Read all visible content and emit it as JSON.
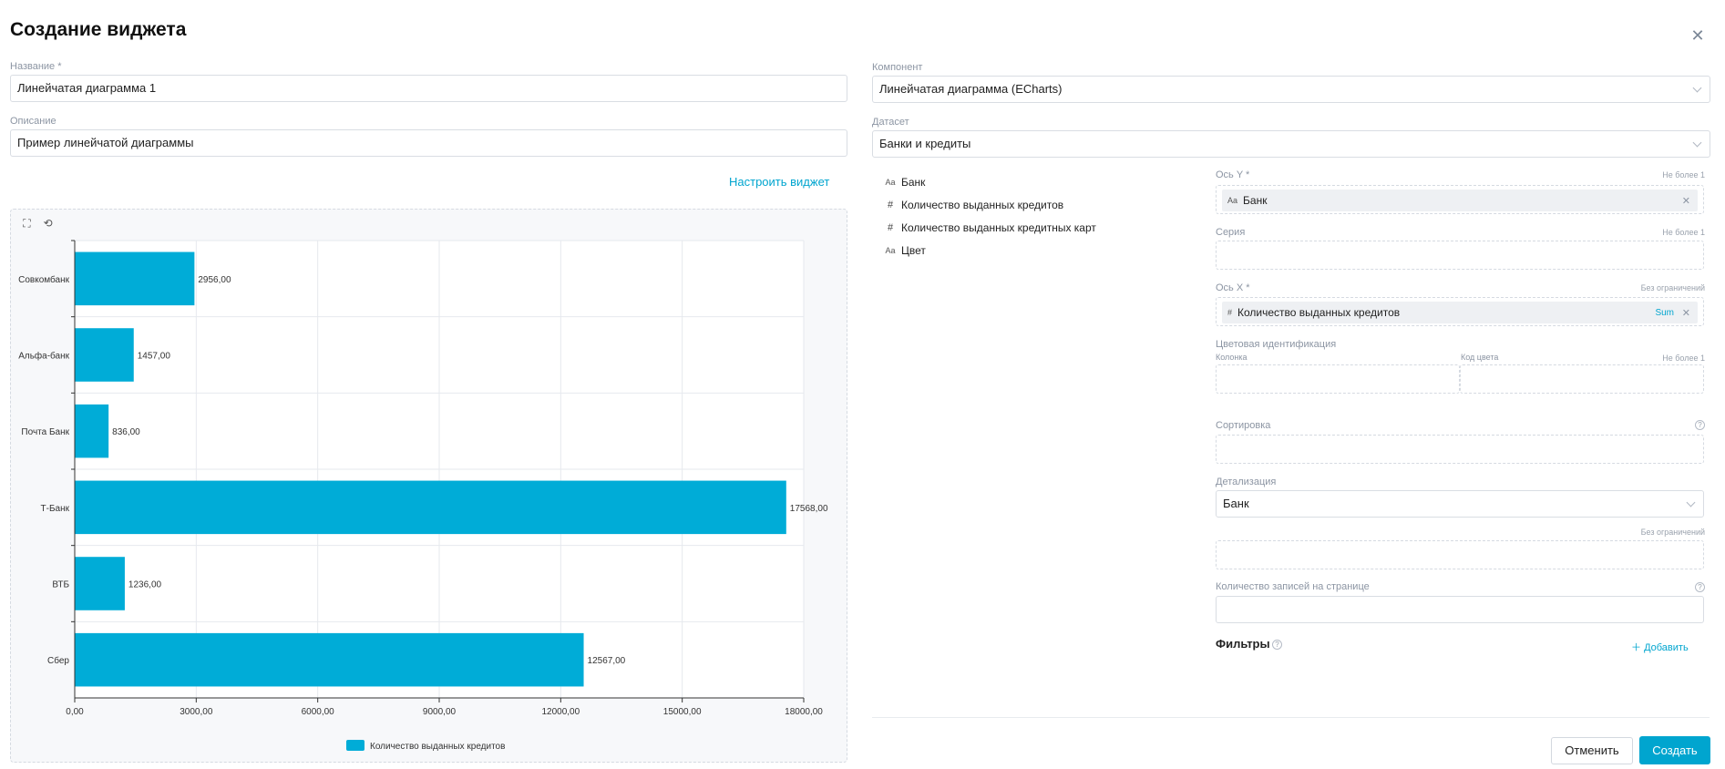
{
  "dialog": {
    "title": "Создание виджета",
    "close_icon": "close-icon"
  },
  "form": {
    "name_label": "Название",
    "name_required": "*",
    "name_value": "Линейчатая диаграмма 1",
    "description_label": "Описание",
    "description_value": "Пример линейчатой диаграммы",
    "component_label": "Компонент",
    "component_value": "Линейчатая диаграмма (ECharts)",
    "dataset_label": "Датасет",
    "dataset_value": "Банки и кредиты",
    "configure_link": "Настроить виджет"
  },
  "dataset_fields": [
    {
      "type": "Aa",
      "label": "Банк"
    },
    {
      "type": "#",
      "label": "Количество выданных кредитов"
    },
    {
      "type": "#",
      "label": "Количество выданных кредитных карт"
    },
    {
      "type": "Aa",
      "label": "Цвет"
    }
  ],
  "config": {
    "y_axis_label": "Ось Y *",
    "y_axis_hint": "Не более 1",
    "y_axis_chip_type": "Aa",
    "y_axis_chip": "Банк",
    "series_label": "Серия",
    "series_hint": "Не более 1",
    "x_axis_label": "Ось X *",
    "x_axis_hint": "Без ограничений",
    "x_axis_chip_type": "#",
    "x_axis_chip": "Количество выданных кредитов",
    "x_axis_agg": "Sum",
    "color_label": "Цветовая идентификация",
    "color_column_label": "Колонка",
    "color_code_label": "Код цвета",
    "color_hint": "Не более 1",
    "sort_label": "Сортировка",
    "detail_label": "Детализация",
    "detail_value": "Банк",
    "detail_hint": "Без ограничений",
    "page_size_label": "Количество записей на странице",
    "filters_label": "Фильтры",
    "add_label": "Добавить",
    "help_icon": "?"
  },
  "buttons": {
    "cancel": "Отменить",
    "create": "Создать"
  },
  "colors": {
    "accent": "#00a5cf",
    "bar": "#00acd7"
  },
  "chart_data": {
    "type": "bar",
    "orientation": "horizontal",
    "categories": [
      "Совкомбанк",
      "Альфа-банк",
      "Почта Банк",
      "Т-Банк",
      "ВТБ",
      "Сбер"
    ],
    "series": [
      {
        "name": "Количество выданных кредитов",
        "values": [
          2956,
          1457,
          836,
          17568,
          1236,
          12567
        ]
      }
    ],
    "value_labels": [
      "2956,00",
      "1457,00",
      "836,00",
      "17568,00",
      "1236,00",
      "12567,00"
    ],
    "x_ticks": [
      "0,00",
      "3000,00",
      "6000,00",
      "9000,00",
      "12000,00",
      "15000,00",
      "18000,00"
    ],
    "xlim": [
      0,
      18000
    ],
    "grid": true,
    "legend_position": "bottom-center",
    "title": "",
    "xlabel": "",
    "ylabel": ""
  }
}
